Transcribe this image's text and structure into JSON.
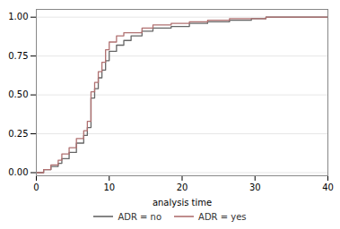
{
  "chart_data": {
    "type": "line",
    "xlabel": "analysis time",
    "xlim": [
      0,
      40
    ],
    "ylim": [
      -0.02,
      1.05
    ],
    "xticks": [
      0,
      10,
      20,
      30,
      40
    ],
    "yticks": [
      {
        "value": 0.0,
        "label": "0.00"
      },
      {
        "value": 0.25,
        "label": "0.25"
      },
      {
        "value": 0.5,
        "label": "0.50"
      },
      {
        "value": 0.75,
        "label": "0.75"
      },
      {
        "value": 1.0,
        "label": "1.00"
      }
    ],
    "grid": "y",
    "legend": "bottom",
    "series": [
      {
        "name": "ADR = no",
        "color": "#666666",
        "x": [
          0,
          1.0,
          1.0,
          2.0,
          2.0,
          3.0,
          3.0,
          3.5,
          3.5,
          4.5,
          4.5,
          5.5,
          5.5,
          6.5,
          6.5,
          7.0,
          7.0,
          7.5,
          7.5,
          8.0,
          8.0,
          8.5,
          8.5,
          9.0,
          9.0,
          9.5,
          9.5,
          10.0,
          10.0,
          11.0,
          11.0,
          12.0,
          12.0,
          13.0,
          13.0,
          14.5,
          14.5,
          16.0,
          16.0,
          18.5,
          18.5,
          21.0,
          21.0,
          23.5,
          23.5,
          26.5,
          26.5,
          29.5,
          29.5,
          31.5,
          31.5,
          40.0
        ],
        "values": [
          0.0,
          0.0,
          0.02,
          0.02,
          0.04,
          0.04,
          0.06,
          0.06,
          0.09,
          0.09,
          0.13,
          0.13,
          0.19,
          0.19,
          0.24,
          0.24,
          0.29,
          0.29,
          0.48,
          0.48,
          0.54,
          0.54,
          0.61,
          0.61,
          0.66,
          0.66,
          0.72,
          0.72,
          0.78,
          0.78,
          0.82,
          0.82,
          0.85,
          0.85,
          0.88,
          0.88,
          0.91,
          0.91,
          0.93,
          0.93,
          0.94,
          0.94,
          0.96,
          0.96,
          0.97,
          0.97,
          0.98,
          0.98,
          0.99,
          0.99,
          1.0,
          1.0
        ]
      },
      {
        "name": "ADR = yes",
        "color": "#b07070",
        "x": [
          0,
          1.0,
          1.0,
          2.0,
          2.0,
          3.0,
          3.0,
          3.5,
          3.5,
          4.5,
          4.5,
          5.5,
          5.5,
          6.5,
          6.5,
          7.0,
          7.0,
          7.5,
          7.5,
          8.0,
          8.0,
          8.5,
          8.5,
          9.0,
          9.0,
          9.5,
          9.5,
          10.0,
          10.0,
          11.0,
          11.0,
          12.0,
          12.0,
          14.5,
          14.5,
          16.0,
          16.0,
          18.5,
          18.5,
          21.0,
          21.0,
          23.5,
          23.5,
          26.5,
          26.5,
          31.5,
          31.5,
          40.0
        ],
        "values": [
          0.0,
          0.0,
          0.02,
          0.02,
          0.05,
          0.05,
          0.08,
          0.08,
          0.12,
          0.12,
          0.16,
          0.16,
          0.22,
          0.22,
          0.27,
          0.27,
          0.33,
          0.33,
          0.52,
          0.52,
          0.58,
          0.58,
          0.65,
          0.65,
          0.71,
          0.71,
          0.79,
          0.79,
          0.84,
          0.84,
          0.88,
          0.88,
          0.9,
          0.9,
          0.93,
          0.93,
          0.95,
          0.95,
          0.96,
          0.96,
          0.97,
          0.97,
          0.98,
          0.98,
          0.99,
          0.99,
          1.0,
          1.0
        ]
      }
    ]
  }
}
